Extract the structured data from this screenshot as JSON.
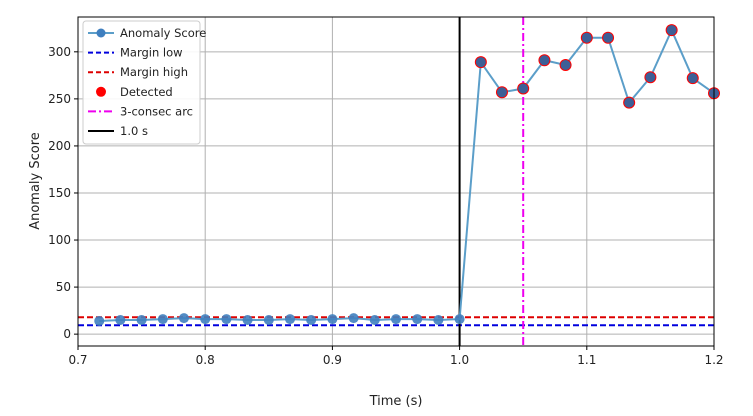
{
  "chart_data": {
    "type": "line",
    "title": "",
    "xlabel": "Time (s)",
    "ylabel": "Anomaly Score",
    "xlim": [
      0.7,
      1.2
    ],
    "ylim": [
      -12.6,
      337
    ],
    "xticks": [
      0.7,
      0.8,
      0.9,
      1.0,
      1.1,
      1.2
    ],
    "xtick_labels": [
      "0.7",
      "0.8",
      "0.9",
      "1.0",
      "1.1",
      "1.2"
    ],
    "yticks": [
      0,
      50,
      100,
      150,
      200,
      250,
      300
    ],
    "ytick_labels": [
      "0",
      "50",
      "100",
      "150",
      "200",
      "250",
      "300"
    ],
    "grid": true,
    "legend_placement": "top-left",
    "series": [
      {
        "name": "Anomaly Score",
        "color": "#5b9ec9",
        "marker_color": "#3f7fbf",
        "x": [
          0.7167,
          0.7333,
          0.75,
          0.7667,
          0.7833,
          0.8,
          0.8167,
          0.8333,
          0.85,
          0.8667,
          0.8833,
          0.9,
          0.9167,
          0.9333,
          0.95,
          0.9667,
          0.9833,
          1.0,
          1.0167,
          1.0333,
          1.05,
          1.0667,
          1.0833,
          1.1,
          1.1167,
          1.1333,
          1.15,
          1.1667,
          1.1833,
          1.2
        ],
        "y": [
          14,
          15,
          15,
          16,
          17,
          16,
          16,
          15,
          15,
          16,
          15,
          16,
          17,
          15,
          16,
          16,
          15,
          16,
          289,
          257,
          261,
          291,
          286,
          315,
          315,
          246,
          273,
          323,
          272,
          256
        ]
      }
    ],
    "detected_x": [
      1.0167,
      1.0333,
      1.05,
      1.0667,
      1.0833,
      1.1,
      1.1167,
      1.1333,
      1.15,
      1.1667,
      1.1833,
      1.2
    ],
    "hlines": [
      {
        "name": "Margin low",
        "y": 9.5,
        "color": "#0000dd",
        "style": "dashed"
      },
      {
        "name": "Margin high",
        "y": 18,
        "color": "#dd0000",
        "style": "dashed"
      }
    ],
    "vlines": [
      {
        "name": "3-consec arc",
        "x": 1.05,
        "color": "#ee00ee",
        "style": "dashdot"
      },
      {
        "name": "1.0 s",
        "x": 1.0,
        "color": "#000000",
        "style": "solid"
      }
    ],
    "legend": [
      "Anomaly Score",
      "Margin low",
      "Margin high",
      "Detected",
      "3-consec arc",
      "1.0 s"
    ],
    "detected_color": "#ff0000"
  }
}
